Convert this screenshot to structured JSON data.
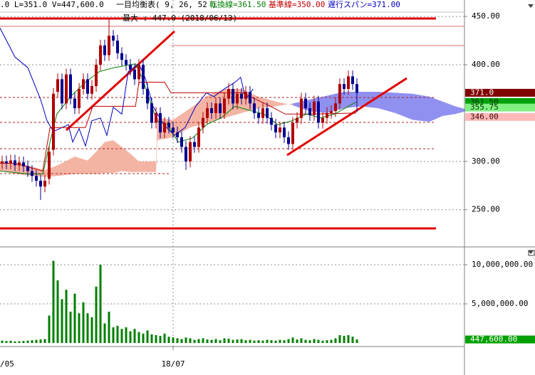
{
  "header": {
    "items": [
      {
        "text": ".0 L=351.0 V=447,600.0",
        "color": "#000000"
      },
      {
        "text": "一目均衡表( 9, 26, 52 )",
        "color": "#000000"
      },
      {
        "text": "転換線=361.50",
        "color": "#008000"
      },
      {
        "text": "基準線=350.00",
        "color": "#c00000"
      },
      {
        "text": "遅行スパン=371.00",
        "color": "#0000c0"
      }
    ]
  },
  "chart_data": {
    "type": "candlestick",
    "annotation": "最大 : 447.0 (2018/06/13)",
    "categories": [
      "/05",
      null,
      null,
      null,
      null,
      null,
      null,
      null,
      null,
      null,
      null,
      null,
      null,
      null,
      null,
      null,
      null,
      null,
      null,
      null,
      null,
      null,
      null,
      null,
      null,
      null,
      null,
      null,
      null,
      null,
      null,
      null,
      null,
      null,
      null,
      null,
      null,
      null,
      null,
      null,
      "18/07",
      null,
      null,
      null,
      null,
      null,
      null,
      null,
      null,
      null,
      null,
      null,
      null,
      null,
      null,
      null,
      null,
      null,
      null,
      null,
      null,
      null,
      null,
      null,
      null,
      null,
      null,
      null,
      null,
      null,
      null,
      null,
      null,
      null,
      null,
      null,
      null,
      null,
      null,
      null,
      null,
      null,
      null,
      null
    ],
    "open": [
      298,
      300,
      298,
      301,
      296,
      299,
      295,
      290,
      285,
      280,
      274,
      282,
      312,
      372,
      385,
      360,
      390,
      365,
      355,
      375,
      385,
      370,
      378,
      400,
      420,
      410,
      430,
      425,
      412,
      405,
      400,
      395,
      385,
      400,
      375,
      360,
      340,
      350,
      330,
      340,
      335,
      330,
      325,
      315,
      300,
      320,
      315,
      335,
      345,
      355,
      350,
      360,
      350,
      365,
      375,
      360,
      370,
      365,
      372,
      360,
      350,
      345,
      355,
      345,
      338,
      330,
      335,
      325,
      318,
      340,
      345,
      365,
      355,
      348,
      362,
      340,
      345,
      350,
      352,
      360,
      380,
      375,
      388,
      380
    ],
    "high": [
      306,
      306,
      307,
      307,
      305,
      305,
      301,
      296,
      291,
      286,
      286,
      316,
      376,
      391,
      391,
      396,
      396,
      371,
      381,
      391,
      391,
      384,
      406,
      426,
      426,
      447,
      436,
      431,
      418,
      411,
      406,
      401,
      406,
      406,
      381,
      366,
      356,
      356,
      346,
      346,
      341,
      336,
      331,
      321,
      326,
      326,
      341,
      351,
      361,
      361,
      366,
      366,
      371,
      381,
      381,
      376,
      376,
      378,
      378,
      366,
      356,
      361,
      361,
      351,
      344,
      341,
      341,
      331,
      346,
      351,
      371,
      371,
      361,
      368,
      368,
      351,
      356,
      358,
      366,
      386,
      386,
      394,
      394,
      386
    ],
    "low": [
      292,
      292,
      292,
      290,
      290,
      289,
      284,
      279,
      274,
      260,
      268,
      276,
      306,
      366,
      354,
      354,
      359,
      349,
      349,
      369,
      364,
      364,
      372,
      394,
      404,
      404,
      419,
      406,
      399,
      394,
      389,
      379,
      379,
      369,
      354,
      334,
      334,
      324,
      324,
      329,
      324,
      319,
      309,
      291,
      294,
      309,
      309,
      329,
      339,
      344,
      344,
      344,
      344,
      359,
      354,
      354,
      359,
      359,
      354,
      344,
      339,
      339,
      339,
      332,
      324,
      324,
      319,
      312,
      312,
      334,
      339,
      349,
      342,
      342,
      334,
      334,
      339,
      344,
      346,
      354,
      369,
      369,
      374,
      351
    ],
    "close": [
      300,
      298,
      301,
      296,
      299,
      295,
      290,
      285,
      280,
      274,
      280,
      310,
      370,
      385,
      360,
      390,
      365,
      355,
      375,
      385,
      370,
      378,
      400,
      420,
      410,
      430,
      425,
      412,
      405,
      400,
      395,
      385,
      400,
      375,
      360,
      340,
      350,
      330,
      340,
      335,
      330,
      325,
      315,
      300,
      320,
      315,
      335,
      345,
      355,
      350,
      360,
      350,
      365,
      375,
      360,
      370,
      365,
      372,
      360,
      350,
      345,
      355,
      345,
      338,
      330,
      335,
      325,
      318,
      340,
      345,
      365,
      355,
      348,
      362,
      340,
      345,
      350,
      352,
      360,
      380,
      375,
      388,
      380,
      371
    ],
    "up_color": "#b00000",
    "down_color": "#000090",
    "volume": [
      300000,
      250000,
      280000,
      200000,
      220000,
      260000,
      300000,
      350000,
      400000,
      450000,
      500000,
      3500000,
      10500000,
      8000000,
      5600000,
      6800000,
      4000000,
      6300000,
      3800000,
      5200000,
      3800000,
      3300000,
      7200000,
      10000000,
      2500000,
      4000000,
      2000000,
      2200000,
      1800000,
      2000000,
      1500000,
      1800000,
      1400000,
      1200000,
      1600000,
      1100000,
      1000000,
      900000,
      1200000,
      800000,
      700000,
      600000,
      500000,
      700000,
      600000,
      400000,
      500000,
      600000,
      450000,
      400000,
      500000,
      350000,
      600000,
      550000,
      400000,
      450000,
      500000,
      350000,
      400000,
      300000,
      350000,
      300000,
      400000,
      350000,
      300000,
      400000,
      350000,
      500000,
      700000,
      450000,
      600000,
      400000,
      350000,
      500000,
      400000,
      300000,
      350000,
      400000,
      600000,
      1000000,
      900000,
      1000000,
      800000,
      447600
    ],
    "volume_color": "#008000",
    "ylim": [
      213,
      467
    ],
    "yticks": [
      {
        "value": 450,
        "label": "450.00"
      },
      {
        "value": 400,
        "label": "400.00"
      },
      {
        "value": 300,
        "label": "300.00"
      },
      {
        "value": 250,
        "label": "250.00"
      }
    ],
    "vol_ylim": [
      0,
      12180000
    ],
    "vol_ticks": [
      {
        "value": 10000000,
        "label": "10,000,000.00"
      },
      {
        "value": 5000000,
        "label": "5,000,000.00"
      }
    ],
    "tenkan": {
      "color": "#008000",
      "x": [
        -0.5,
        6.2,
        9.5,
        11.2,
        12.8,
        16.2,
        19.5,
        22.8,
        26.2,
        31.2,
        32.8,
        34.5,
        36.2,
        38.7,
        41.2,
        44.5,
        47.8,
        51.2,
        54.5,
        57.8,
        61.2,
        64.5,
        67.8,
        71.2,
        74.5,
        77.8,
        82.8
      ],
      "values": [
        290,
        287,
        287,
        320,
        349,
        368,
        382,
        393,
        397,
        401,
        386,
        364,
        342,
        338,
        320,
        324,
        338,
        345,
        357,
        353,
        349,
        338,
        342,
        349,
        345,
        349,
        361.5
      ]
    },
    "kijun": {
      "color": "#c00000",
      "x": [
        -0.5,
        3,
        9.5,
        11.2,
        16.2,
        19.5,
        21.2,
        31.2,
        32,
        38,
        39.5,
        47.8,
        56.2,
        59.5,
        62.8,
        66.2,
        72.8,
        82.8
      ],
      "values": [
        298,
        298,
        290,
        335,
        335,
        335,
        357,
        357,
        382,
        382,
        371,
        371,
        371,
        364,
        357,
        349,
        349,
        350
      ]
    },
    "chikou": {
      "color": "#0000c0",
      "x": [
        -0.5,
        3,
        6,
        9,
        10.5,
        12,
        15.5,
        16.5,
        18,
        19.5,
        21,
        23,
        24.5,
        26,
        28,
        29.5,
        32,
        33.5,
        35.3,
        37.8,
        40.3,
        42.8,
        45.3,
        47.8,
        49.5,
        52,
        54.5,
        55.8,
        57,
        58.7
      ],
      "values": [
        438,
        408,
        397,
        364,
        342,
        331,
        338,
        320,
        334,
        316,
        342,
        345,
        327,
        356,
        349,
        393,
        401,
        386,
        357,
        338,
        327,
        335,
        357,
        371,
        367,
        375,
        382,
        387,
        364,
        375
      ]
    },
    "clouds": [
      {
        "color": "#f4b4a4",
        "x": [
          -0.5,
          5,
          10,
          13,
          17,
          20,
          22,
          24,
          26,
          28,
          30,
          32,
          36,
          36.3,
          40,
          44,
          48,
          52,
          56,
          60,
          64,
          68
        ],
        "span_a": [
          300,
          297,
          291,
          296,
          305,
          301,
          310,
          320,
          322,
          315,
          308,
          300,
          300,
          345,
          343,
          355,
          368,
          375,
          375,
          367,
          362,
          358
        ],
        "span_b": [
          290,
          286,
          284,
          285,
          287,
          287,
          287,
          288,
          288,
          290,
          289,
          289,
          289,
          322,
          325,
          335,
          340,
          345,
          350,
          355,
          357,
          360
        ]
      },
      {
        "color": "#9090f0",
        "x": [
          68,
          72,
          76,
          80,
          84,
          88,
          92,
          96,
          100,
          103,
          106,
          108.5
        ],
        "span_a": [
          358,
          352,
          350,
          355,
          357,
          355,
          350,
          343,
          341,
          347,
          349,
          352
        ],
        "span_b": [
          360,
          364,
          368,
          372,
          372,
          372,
          371,
          370,
          367,
          362,
          357,
          354
        ]
      }
    ],
    "price_badges": [
      {
        "value": 371,
        "label": "371.0",
        "bg": "#800000",
        "fg": "#ffffff"
      },
      {
        "value": 361.5,
        "label": "361.50",
        "bg": "#00a000",
        "fg": "#003000"
      },
      {
        "value": 355.75,
        "label": "355.75",
        "bg": "#80f080",
        "fg": "#003000"
      },
      {
        "value": 346,
        "label": "346.00",
        "bg": "#ffb8b8",
        "fg": "#400000"
      }
    ],
    "volume_badge": {
      "value": 447600,
      "label": "447,600.00",
      "bg": "#00a000",
      "fg": "#ffffff"
    }
  }
}
